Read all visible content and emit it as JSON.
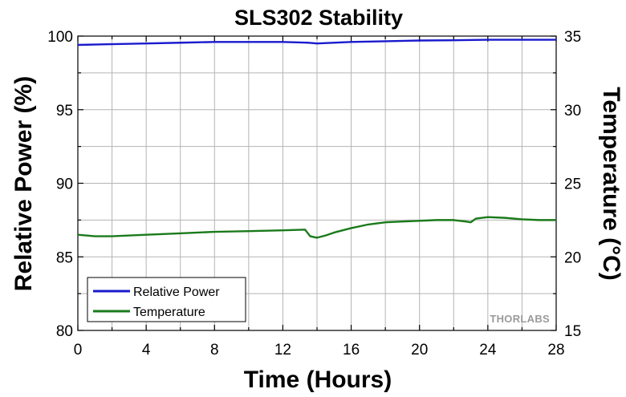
{
  "chart_data": {
    "type": "line",
    "title": "SLS302 Stability",
    "xlabel": "Time (Hours)",
    "ylabel_left": "Relative Power (%)",
    "ylabel_right": "Temperature (°C)",
    "xlim": [
      0,
      28
    ],
    "ylim_left": [
      80,
      100
    ],
    "ylim_right": [
      15,
      35
    ],
    "x_ticks": [
      "0",
      "4",
      "8",
      "12",
      "16",
      "20",
      "24",
      "28"
    ],
    "y_left_ticks": [
      "80",
      "85",
      "90",
      "95",
      "100"
    ],
    "y_right_ticks": [
      "15",
      "20",
      "25",
      "30",
      "35"
    ],
    "grid": true,
    "legend_position": "bottom-left",
    "series": [
      {
        "name": "Relative Power",
        "axis": "left",
        "color": "#1a1acd",
        "x": [
          0,
          2,
          4,
          6,
          8,
          10,
          12,
          13.5,
          14,
          16,
          18,
          20,
          22,
          24,
          26,
          28
        ],
        "y": [
          99.4,
          99.45,
          99.5,
          99.55,
          99.6,
          99.6,
          99.6,
          99.55,
          99.5,
          99.6,
          99.65,
          99.7,
          99.72,
          99.75,
          99.75,
          99.75
        ]
      },
      {
        "name": "Temperature",
        "axis": "right",
        "color": "#1a7a1a",
        "x": [
          0,
          1,
          2,
          4,
          6,
          8,
          10,
          12,
          13.3,
          13.6,
          14,
          14.5,
          15,
          16,
          17,
          18,
          19,
          20,
          21,
          22,
          22.7,
          23,
          23.3,
          24,
          25,
          26,
          27,
          28
        ],
        "y": [
          21.5,
          21.4,
          21.4,
          21.5,
          21.6,
          21.7,
          21.75,
          21.8,
          21.85,
          21.4,
          21.3,
          21.45,
          21.65,
          21.95,
          22.2,
          22.35,
          22.4,
          22.45,
          22.5,
          22.5,
          22.4,
          22.35,
          22.6,
          22.7,
          22.65,
          22.55,
          22.5,
          22.5
        ]
      }
    ]
  },
  "watermark": "THORLABS"
}
